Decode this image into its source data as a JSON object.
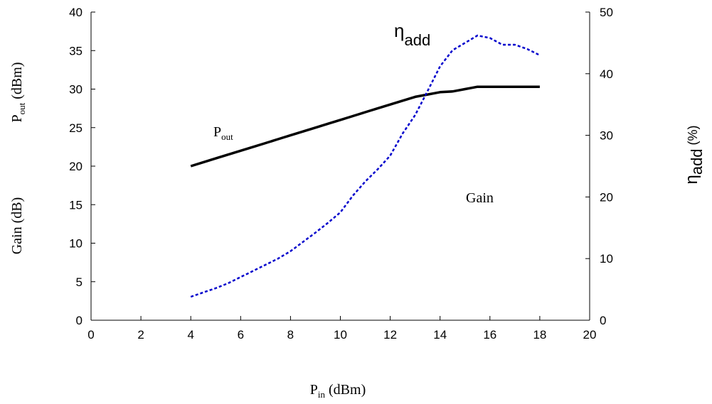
{
  "chart_data": {
    "type": "line",
    "x_axis": {
      "label_main": "P",
      "label_sub": "in",
      "label_unit": " (dBm)",
      "range": [
        0,
        20
      ],
      "ticks": [
        0,
        2,
        4,
        6,
        8,
        10,
        12,
        14,
        16,
        18,
        20
      ],
      "tick_labels": [
        "0",
        "2",
        "4",
        "6",
        "8",
        "10",
        "12",
        "14",
        "16",
        "18",
        "20"
      ]
    },
    "y_left": {
      "label1_main": "P",
      "label1_sub": "out",
      "label1_unit": " (dBm)",
      "label2": "Gain (dB)",
      "range": [
        0,
        40
      ],
      "ticks": [
        0,
        5,
        10,
        15,
        20,
        25,
        30,
        35,
        40
      ],
      "tick_labels": [
        "0",
        "5",
        "10",
        "15",
        "20",
        "25",
        "30",
        "35",
        "40"
      ]
    },
    "y_right": {
      "label_main": "η",
      "label_sub": "add",
      "label_unit": " (%)",
      "range": [
        0,
        50
      ],
      "ticks": [
        0,
        10,
        20,
        30,
        40,
        50
      ],
      "tick_labels": [
        "0",
        "10",
        "20",
        "30",
        "40",
        "50"
      ]
    },
    "series": [
      {
        "axis": "left",
        "style": "solid",
        "color": "#000000",
        "x": [
          4,
          4.5,
          5,
          5.5,
          6,
          6.5,
          7,
          7.5,
          8,
          8.5,
          9,
          9.5,
          10,
          10.5,
          11,
          11.5,
          12,
          12.5,
          13,
          13.5,
          14,
          14.5,
          15,
          15.5,
          16,
          16.5,
          17,
          17.5,
          18
        ],
        "y": [
          20,
          20.5,
          21,
          21.5,
          22,
          22.5,
          23,
          23.5,
          24,
          24.5,
          25,
          25.5,
          26,
          26.5,
          27,
          27.5,
          28,
          28.5,
          29,
          29.3,
          29.6,
          29.7,
          30,
          30.3,
          30.3,
          30.3,
          30.3,
          30.3,
          30.3
        ]
      },
      {
        "axis": "right",
        "style": "dashed",
        "color": "#0000cc",
        "x": [
          4,
          4.5,
          5,
          5.5,
          6,
          6.5,
          7,
          7.5,
          8,
          8.5,
          9,
          9.5,
          10,
          10.5,
          11,
          11.5,
          12,
          12.5,
          13,
          13.5,
          14,
          14.5,
          15,
          15.5,
          16,
          16.5,
          17,
          17.5,
          18
        ],
        "y": [
          3.8,
          4.5,
          5.2,
          6.0,
          7.0,
          8.0,
          9.0,
          10.0,
          11.2,
          12.7,
          14.2,
          15.8,
          17.5,
          20.2,
          22.5,
          24.5,
          26.7,
          30.3,
          33.3,
          37.2,
          41.2,
          43.8,
          45.0,
          46.2,
          45.8,
          44.7,
          44.7,
          44.0,
          43.0
        ]
      }
    ],
    "annotations": {
      "pout_main": "P",
      "pout_sub": "out",
      "eta_main": "η",
      "eta_sub": "add",
      "gain": "Gain"
    }
  }
}
